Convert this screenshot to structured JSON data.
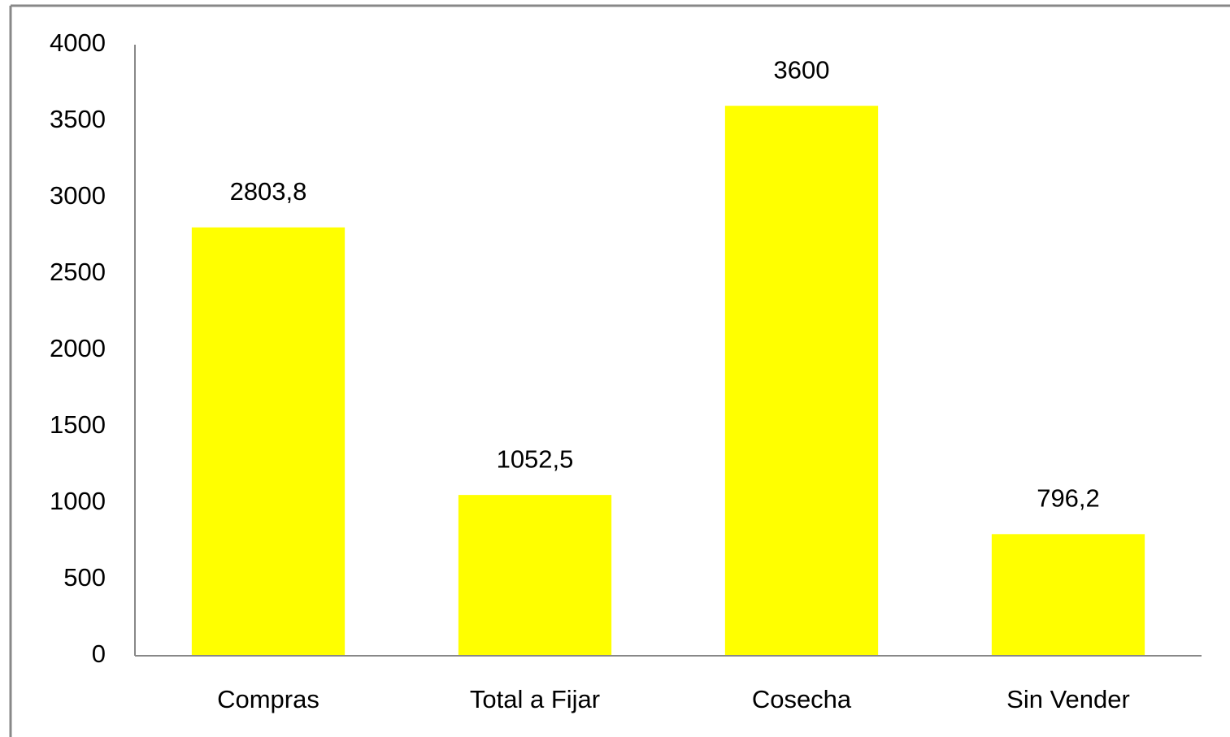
{
  "chart_data": {
    "type": "bar",
    "categories": [
      "Compras",
      "Total a Fijar",
      "Cosecha",
      "Sin Vender"
    ],
    "values": [
      2803.8,
      1052.5,
      3600,
      796.2
    ],
    "value_labels": [
      "2803,8",
      "1052,5",
      "3600",
      "796,2"
    ],
    "color": "#ffff00",
    "ylim": [
      0,
      4000
    ],
    "yticks": [
      0,
      500,
      1000,
      1500,
      2000,
      2500,
      3000,
      3500,
      4000
    ],
    "grid": false
  }
}
